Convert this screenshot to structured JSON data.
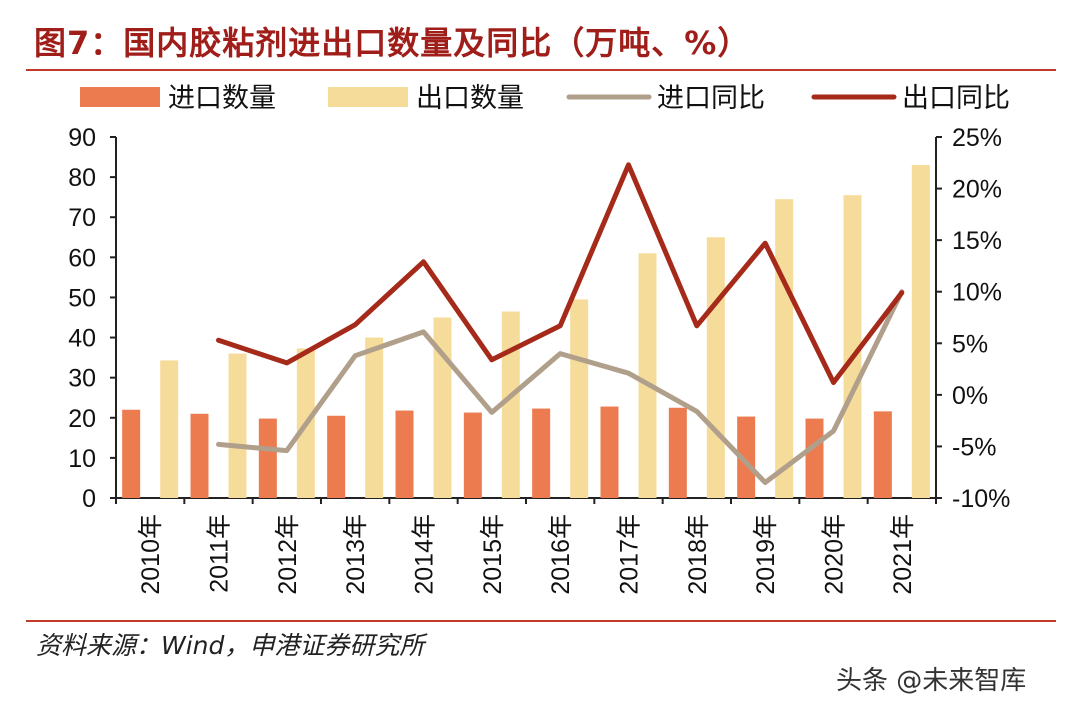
{
  "title": "图7：国内胶粘剂进出口数量及同比（万吨、%）",
  "source": "资料来源：Wind，申港证券研究所",
  "watermark": "头条 @未来智库",
  "colors": {
    "import_qty": "#ec7b50",
    "export_qty": "#f6dc9a",
    "import_yoy": "#b09f8a",
    "export_yoy": "#a52a1a",
    "title": "#a01e1a"
  },
  "chart_data": {
    "type": "bar",
    "categories": [
      "2010年",
      "2011年",
      "2012年",
      "2013年",
      "2014年",
      "2015年",
      "2016年",
      "2017年",
      "2018年",
      "2019年",
      "2020年",
      "2021年"
    ],
    "series": [
      {
        "name": "进口数量",
        "type": "bar",
        "axis": "left",
        "values": [
          22,
          21,
          19.8,
          20.5,
          21.8,
          21.3,
          22.3,
          22.8,
          22.5,
          20.3,
          19.8,
          21.6
        ]
      },
      {
        "name": "出口数量",
        "type": "bar",
        "axis": "left",
        "values": [
          34.3,
          36,
          37.3,
          40,
          45,
          46.5,
          49.5,
          61,
          65,
          74.5,
          75.5,
          83
        ]
      },
      {
        "name": "进口同比",
        "type": "line",
        "axis": "right",
        "values": [
          null,
          -4.8,
          -5.4,
          3.8,
          6.1,
          -1.7,
          4,
          2.1,
          -1.6,
          -8.5,
          -3.5,
          10
        ]
      },
      {
        "name": "出口同比",
        "type": "line",
        "axis": "right",
        "values": [
          null,
          5.3,
          3.1,
          6.8,
          12.9,
          3.4,
          6.7,
          22.3,
          6.7,
          14.7,
          1.2,
          9.9
        ]
      }
    ],
    "y_left": {
      "range": [
        0,
        90
      ],
      "ticks": [
        "0",
        "10",
        "20",
        "30",
        "40",
        "50",
        "60",
        "70",
        "80",
        "90"
      ]
    },
    "y_right": {
      "range": [
        -10,
        25
      ],
      "ticks": [
        "-10%",
        "-5%",
        "0%",
        "5%",
        "10%",
        "15%",
        "20%",
        "25%"
      ]
    },
    "legend": {
      "position": "top",
      "entries": [
        "进口数量",
        "出口数量",
        "进口同比",
        "出口同比"
      ]
    },
    "grid": false
  }
}
